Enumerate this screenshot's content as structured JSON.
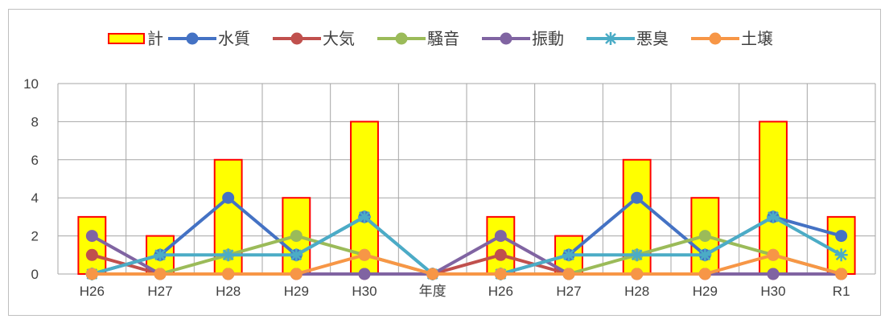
{
  "chart_data": {
    "type": "bar",
    "categories": [
      "H26",
      "H27",
      "H28",
      "H29",
      "H30",
      "年度",
      "H26",
      "H27",
      "H28",
      "H29",
      "H30",
      "R1"
    ],
    "ylim": [
      0,
      10
    ],
    "yticks": [
      "0",
      "2",
      "4",
      "6",
      "8",
      "10"
    ],
    "grid": true,
    "legend_position": "top-center",
    "bar_series": {
      "name": "計",
      "color": "#ffff00",
      "edge_color": "#ff0000",
      "values": [
        3,
        2,
        6,
        4,
        8,
        null,
        3,
        2,
        6,
        4,
        8,
        3
      ]
    },
    "series": [
      {
        "name": "水質",
        "color": "#4472c4",
        "marker": "circle",
        "values": [
          0,
          1,
          4,
          1,
          3,
          0,
          0,
          1,
          4,
          1,
          3,
          2
        ]
      },
      {
        "name": "大気",
        "color": "#c0504d",
        "marker": "circle",
        "values": [
          1,
          0,
          0,
          0,
          0,
          0,
          1,
          0,
          0,
          0,
          0,
          0
        ]
      },
      {
        "name": "騒音",
        "color": "#9bbb59",
        "marker": "circle",
        "values": [
          0,
          0,
          1,
          2,
          1,
          0,
          0,
          0,
          1,
          2,
          1,
          0
        ]
      },
      {
        "name": "振動",
        "color": "#8064a2",
        "marker": "circle",
        "values": [
          2,
          0,
          0,
          0,
          0,
          0,
          2,
          0,
          0,
          0,
          0,
          0
        ]
      },
      {
        "name": "悪臭",
        "color": "#4bacc6",
        "marker": "star",
        "values": [
          0,
          1,
          1,
          1,
          3,
          0,
          0,
          1,
          1,
          1,
          3,
          1
        ]
      },
      {
        "name": "土壌",
        "color": "#f79646",
        "marker": "circle",
        "values": [
          0,
          0,
          0,
          0,
          1,
          0,
          0,
          0,
          0,
          0,
          1,
          0
        ]
      }
    ]
  }
}
